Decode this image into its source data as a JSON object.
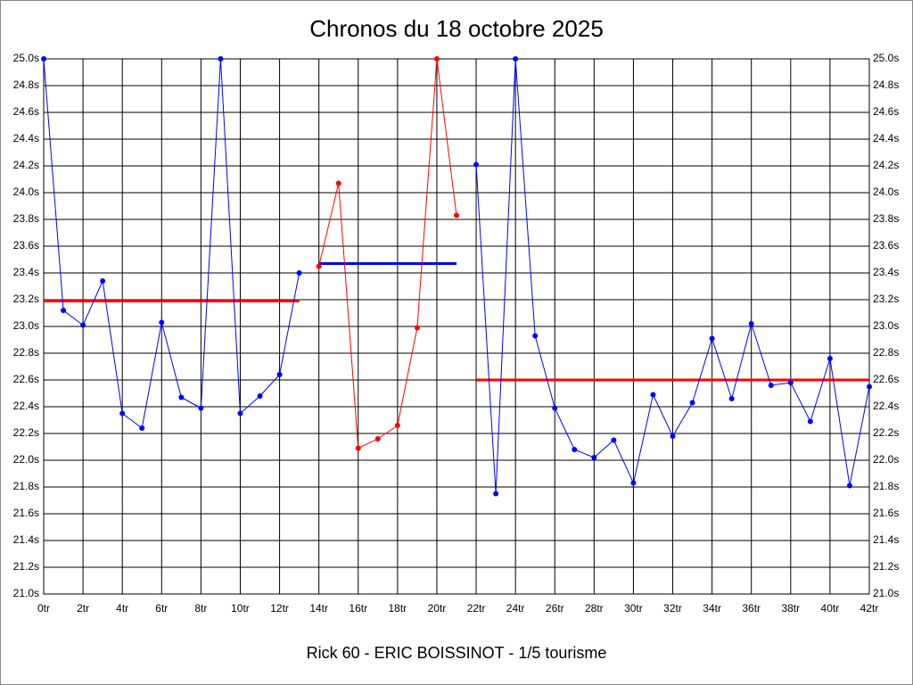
{
  "chart_data": {
    "type": "line",
    "title": "Chronos du 18 octobre 2025",
    "subtitle": "Rick 60 - ERIC BOISSINOT - 1/5 tourisme",
    "series": [
      {
        "color": "#0000ff",
        "x": [
          0,
          1,
          2,
          3,
          4,
          5,
          6,
          7,
          8,
          9,
          10,
          11,
          12,
          13
        ],
        "values": [
          25.0,
          23.12,
          23.01,
          23.34,
          22.35,
          22.24,
          23.03,
          22.47,
          22.39,
          25.0,
          22.35,
          22.48,
          22.64,
          23.4
        ]
      },
      {
        "color": "#ff0000",
        "x": [
          14,
          15,
          16,
          17,
          18,
          19,
          20,
          21
        ],
        "values": [
          23.45,
          24.07,
          22.09,
          22.16,
          22.26,
          22.99,
          25.0,
          23.83
        ]
      },
      {
        "color": "#0000ff",
        "x": [
          22,
          23,
          24,
          25,
          26,
          27,
          28,
          29,
          30,
          31,
          32,
          33,
          34,
          35,
          36,
          37,
          38,
          39,
          40,
          41,
          42
        ],
        "values": [
          24.21,
          21.75,
          25.0,
          22.93,
          22.39,
          22.08,
          22.02,
          22.15,
          21.83,
          22.49,
          22.18,
          22.43,
          22.91,
          22.46,
          23.02,
          22.56,
          22.58,
          22.29,
          22.76,
          21.81,
          22.55
        ]
      }
    ],
    "reference_lines": [
      {
        "color": "#ff0000",
        "value": 23.19,
        "xrange": [
          0,
          13
        ]
      },
      {
        "color": "#0000ff",
        "value": 23.47,
        "xrange": [
          14,
          21
        ]
      },
      {
        "color": "#ff0000",
        "value": 22.6,
        "xrange": [
          22,
          42
        ]
      }
    ],
    "xlim": [
      0,
      42
    ],
    "ylim": [
      21.0,
      25.0
    ],
    "grid": true,
    "xticks": [
      {
        "value": 0,
        "label": "0tr"
      },
      {
        "value": 2,
        "label": "2tr"
      },
      {
        "value": 4,
        "label": "4tr"
      },
      {
        "value": 6,
        "label": "6tr"
      },
      {
        "value": 8,
        "label": "8tr"
      },
      {
        "value": 10,
        "label": "10tr"
      },
      {
        "value": 12,
        "label": "12tr"
      },
      {
        "value": 14,
        "label": "14tr"
      },
      {
        "value": 16,
        "label": "16tr"
      },
      {
        "value": 18,
        "label": "18tr"
      },
      {
        "value": 20,
        "label": "20tr"
      },
      {
        "value": 22,
        "label": "22tr"
      },
      {
        "value": 24,
        "label": "24tr"
      },
      {
        "value": 26,
        "label": "26tr"
      },
      {
        "value": 28,
        "label": "28tr"
      },
      {
        "value": 30,
        "label": "30tr"
      },
      {
        "value": 32,
        "label": "32tr"
      },
      {
        "value": 34,
        "label": "34tr"
      },
      {
        "value": 36,
        "label": "36tr"
      },
      {
        "value": 38,
        "label": "38tr"
      },
      {
        "value": 40,
        "label": "40tr"
      },
      {
        "value": 42,
        "label": "42tr"
      }
    ],
    "yticks": [
      {
        "value": 21.0,
        "label": "21.0s"
      },
      {
        "value": 21.2,
        "label": "21.2s"
      },
      {
        "value": 21.4,
        "label": "21.4s"
      },
      {
        "value": 21.6,
        "label": "21.6s"
      },
      {
        "value": 21.8,
        "label": "21.8s"
      },
      {
        "value": 22.0,
        "label": "22.0s"
      },
      {
        "value": 22.2,
        "label": "22.2s"
      },
      {
        "value": 22.4,
        "label": "22.4s"
      },
      {
        "value": 22.6,
        "label": "22.6s"
      },
      {
        "value": 22.8,
        "label": "22.8s"
      },
      {
        "value": 23.0,
        "label": "23.0s"
      },
      {
        "value": 23.2,
        "label": "23.2s"
      },
      {
        "value": 23.4,
        "label": "23.4s"
      },
      {
        "value": 23.6,
        "label": "23.6s"
      },
      {
        "value": 23.8,
        "label": "23.8s"
      },
      {
        "value": 24.0,
        "label": "24.0s"
      },
      {
        "value": 24.2,
        "label": "24.2s"
      },
      {
        "value": 24.4,
        "label": "24.4s"
      },
      {
        "value": 24.6,
        "label": "24.6s"
      },
      {
        "value": 24.8,
        "label": "24.8s"
      },
      {
        "value": 25.0,
        "label": "25.0s"
      }
    ]
  }
}
